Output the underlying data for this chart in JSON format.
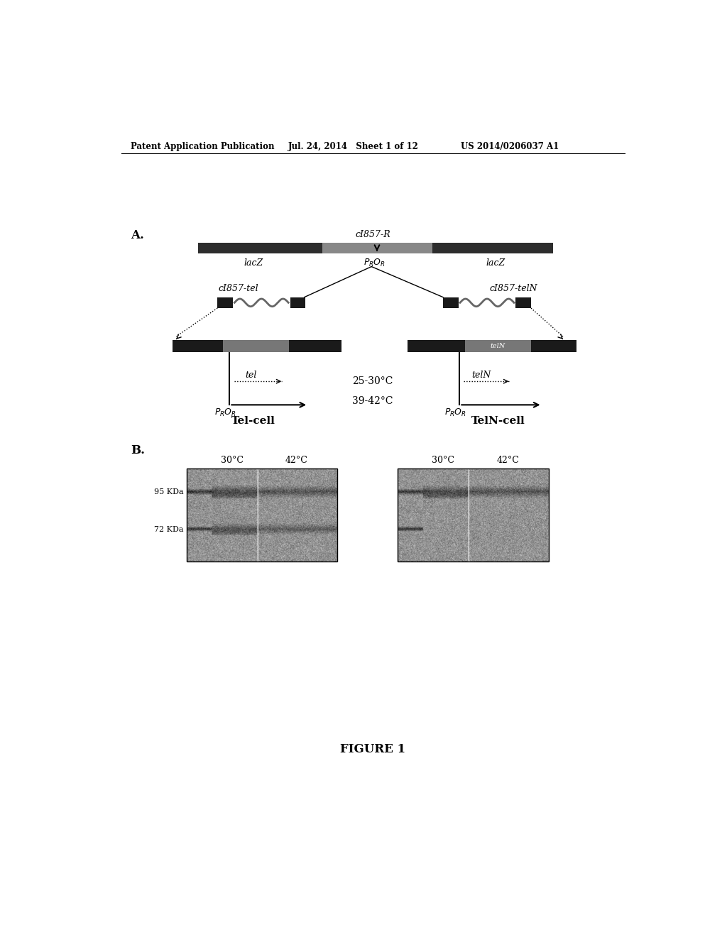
{
  "header_left": "Patent Application Publication",
  "header_mid": "Jul. 24, 2014   Sheet 1 of 12",
  "header_right": "US 2014/0206037 A1",
  "figure_label": "FIGURE 1",
  "section_a_label": "A.",
  "section_b_label": "B.",
  "top_bar_label": "cI857-R",
  "top_bar_lacZ_left": "lacZ",
  "top_bar_lacZ_right": "lacZ",
  "left_cassette_label": "cI857-tel",
  "right_cassette_label": "cI857-telN",
  "left_tel_label": "tel",
  "right_tel_label": "telN",
  "left_cell_label": "Tel-cell",
  "right_cell_label": "TelN-cell",
  "temp_25_30": "25-30°C",
  "temp_39_42": "39-42°C",
  "gel_label_95": "95 KDa",
  "gel_label_72": "72 KDa",
  "gel_left_30": "30°C",
  "gel_left_42": "42°C",
  "gel_right_30": "30°C",
  "gel_right_42": "42°C",
  "bg_color": "#ffffff"
}
